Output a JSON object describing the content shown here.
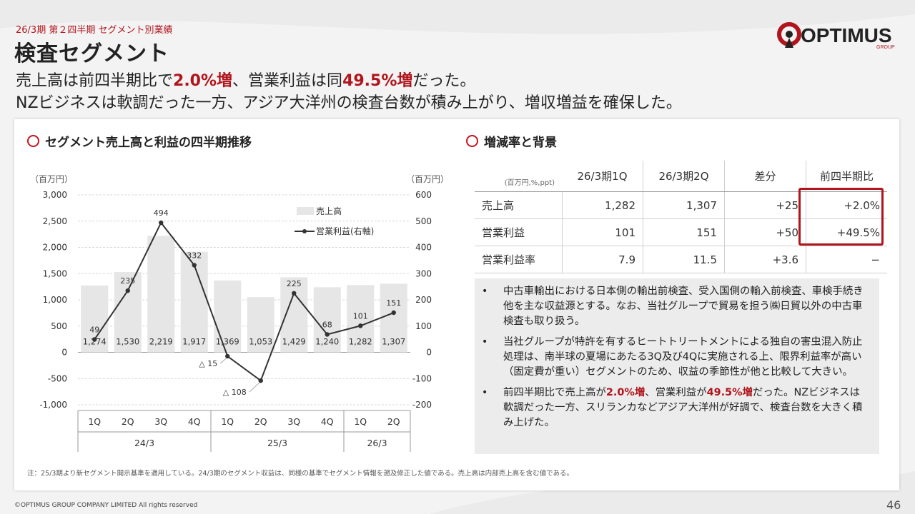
{
  "header": {
    "kicker": "26/3期 第２四半期 セグメント別業績",
    "title": "検査セグメント",
    "headline1": {
      "a": "売上高は前四半期比で",
      "b": "2.0%増",
      "c": "、営業利益は同",
      "d": "49.5%増",
      "e": "だった。"
    },
    "headline2": "NZビジネスは軟調だった一方、アジア大洋州の検査台数が積み上がり、増収増益を確保した。"
  },
  "logo": {
    "text": "OPTIMUS",
    "sub": "GROUP"
  },
  "colors": {
    "accent": "#b0151d",
    "bar": "#e6e6e6",
    "line": "#333333"
  },
  "section1": {
    "title": "セグメント売上高と利益の四半期推移"
  },
  "section2": {
    "title": "増減率と背景"
  },
  "chart_data": {
    "type": "bar+line",
    "left_unit": "（百万円）",
    "right_unit": "（百万円）",
    "left_axis": {
      "min": -1000,
      "max": 3000,
      "ticks": [
        "3,000",
        "2,500",
        "2,000",
        "1,500",
        "1,000",
        "500",
        "0",
        "-500",
        "-1,000"
      ]
    },
    "right_axis": {
      "min": -200,
      "max": 600,
      "ticks": [
        "600",
        "500",
        "400",
        "300",
        "200",
        "100",
        "0",
        "-100",
        "-200"
      ]
    },
    "quarters": [
      "1Q",
      "2Q",
      "3Q",
      "4Q",
      "1Q",
      "2Q",
      "3Q",
      "4Q",
      "1Q",
      "2Q"
    ],
    "years": [
      {
        "label": "24/3",
        "span": 4
      },
      {
        "label": "25/3",
        "span": 4
      },
      {
        "label": "26/3",
        "span": 2
      }
    ],
    "series": [
      {
        "name": "売上高",
        "axis": "left",
        "kind": "bar",
        "values": [
          1274,
          1530,
          2219,
          1917,
          1369,
          1053,
          1429,
          1240,
          1282,
          1307
        ],
        "labels": [
          "1,274",
          "1,530",
          "2,219",
          "1,917",
          "1,369",
          "1,053",
          "1,429",
          "1,240",
          "1,282",
          "1,307"
        ]
      },
      {
        "name": "営業利益(右軸)",
        "axis": "right",
        "kind": "line",
        "values": [
          49,
          235,
          494,
          332,
          -15,
          -108,
          225,
          68,
          101,
          151
        ],
        "labels": [
          "49",
          "235",
          "494",
          "332",
          "△ 15",
          "△ 108",
          "225",
          "68",
          "101",
          "151"
        ]
      }
    ]
  },
  "table": {
    "unit": "(百万円,%,ppt)",
    "headers": [
      "26/3期1Q",
      "26/3期2Q",
      "差分",
      "前四半期比"
    ],
    "rows": [
      {
        "label": "売上高",
        "c1": "1,282",
        "c2": "1,307",
        "c3": "+25",
        "c4": "+2.0%"
      },
      {
        "label": "営業利益",
        "c1": "101",
        "c2": "151",
        "c3": "+50",
        "c4": "+49.5%"
      },
      {
        "label": "営業利益率",
        "c1": "7.9",
        "c2": "11.5",
        "c3": "+3.6",
        "c4": "−"
      }
    ]
  },
  "notes": {
    "b1": "中古車輸出における日本側の輸出前検査、受入国側の輸入前検査、車検手続き他を主な収益源とする。なお、当社グループで貿易を担う㈱日貿以外の中古車検査も取り扱う。",
    "b2": "当社グループが特許を有するヒートトリートメントによる独自の害虫混入防止処理は、南半球の夏場にあたる3Q及び4Qに実施される上、限界利益率が高い（固定費が重い）セグメントのため、収益の季節性が他と比較して大きい。",
    "b3a": "前四半期比で売上高が",
    "b3b": "2.0%増",
    "b3c": "、営業利益が",
    "b3d": "49.5%増",
    "b3e": "だった。NZビジネスは軟調だった一方、スリランカなどアジア大洋州が好調で、検査台数を大きく積み上げた。"
  },
  "footnote": "注：25/3期より新セグメント開示基準を適用している。24/3期のセグメント収益は、同様の基準でセグメント情報を遡及修正した値である。売上高は内部売上高を含む値である。",
  "footer": {
    "copyright": "©OPTIMUS GROUP COMPANY LIMITED All rights reserved",
    "page": "46"
  }
}
